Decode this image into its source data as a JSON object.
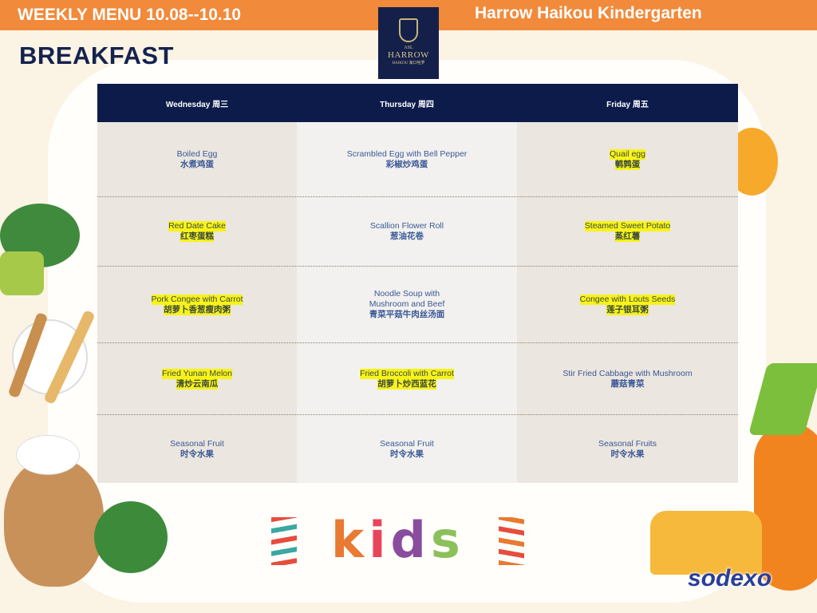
{
  "header": {
    "week_title": "WEEKLY MENU 10.08--10.10",
    "school_name": "Harrow Haikou Kindergarten",
    "meal": "BREAKFAST"
  },
  "logo": {
    "top": "ASL",
    "name": "HARROW",
    "sub": "HAIKOU 海口哈罗"
  },
  "colors": {
    "topbar": "#f18a3a",
    "table_header": "#0d1b4b",
    "item_text": "#3a5896",
    "highlight": "#f7f31a"
  },
  "days": [
    "Wednesday 周三",
    "Thursday 周四",
    "Friday 周五"
  ],
  "rows": [
    [
      {
        "en": "Boiled Egg",
        "zh": "水煮鸡蛋",
        "hl": false
      },
      {
        "en": "Scrambled Egg with Bell Pepper",
        "zh": "彩椒炒鸡蛋",
        "hl": false
      },
      {
        "en": "Quail egg",
        "zh": "鹌鹑蛋",
        "hl": true
      }
    ],
    [
      {
        "en": "Red Date Cake",
        "zh": "红枣蛋糕",
        "hl": true
      },
      {
        "en": "Scallion Flower Roll",
        "zh": "葱油花卷",
        "hl": false
      },
      {
        "en": "Steamed Sweet Potato",
        "zh": "蒸红薯",
        "hl": true
      }
    ],
    [
      {
        "en": "Pork Congee with Carrot",
        "zh": "胡萝卜香葱瘦肉粥",
        "hl": true
      },
      {
        "en": "Noodle Soup with Mushroom and Beef",
        "zh": "青菜平菇牛肉丝汤面",
        "hl": false
      },
      {
        "en": "Congee with Louts Seeds",
        "zh": "莲子银耳粥",
        "hl": true
      }
    ],
    [
      {
        "en": "Fried Yunan Melon",
        "zh": "清炒云南瓜",
        "hl": true
      },
      {
        "en": "Fried Broccoli with Carrot",
        "zh": "胡萝卜炒西蓝花",
        "hl": true
      },
      {
        "en": "Stir Fried Cabbage with Mushroom",
        "zh": "蘑菇青菜",
        "hl": false
      }
    ],
    [
      {
        "en": "Seasonal Fruit",
        "zh": "时令水果",
        "hl": false
      },
      {
        "en": "Seasonal Fruit",
        "zh": "时令水果",
        "hl": false
      },
      {
        "en": "Seasonal Fruits",
        "zh": "时令水果",
        "hl": false
      }
    ]
  ],
  "footer": {
    "kids": "kids",
    "brand": "sodexo"
  }
}
